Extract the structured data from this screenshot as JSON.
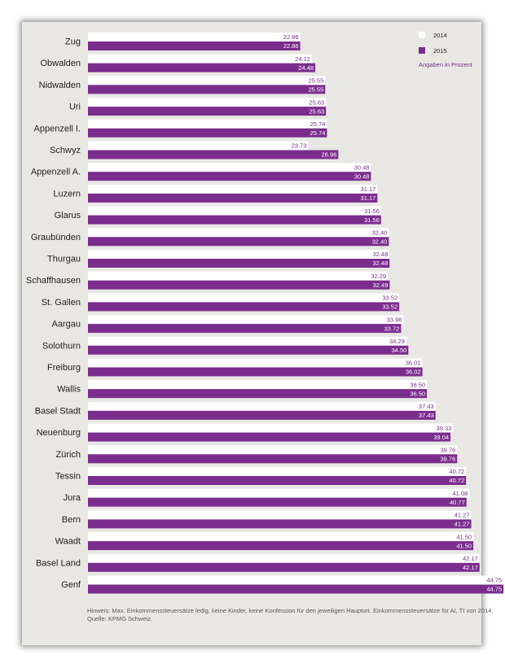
{
  "chart_data": {
    "type": "bar",
    "orientation": "horizontal",
    "categories": [
      "Zug",
      "Obwalden",
      "Nidwalden",
      "Uri",
      "Appenzell I.",
      "Schwyz",
      "Appenzell A.",
      "Luzern",
      "Glarus",
      "Graubünden",
      "Thurgau",
      "Schaffhausen",
      "St. Gallen",
      "Aargau",
      "Solothurn",
      "Freiburg",
      "Wallis",
      "Basel Stadt",
      "Neuenburg",
      "Zürich",
      "Tessin",
      "Jura",
      "Bern",
      "Waadt",
      "Basel Land",
      "Genf"
    ],
    "series": [
      {
        "name": "2014",
        "color": "#ffffff",
        "values": [
          22.86,
          24.12,
          25.55,
          25.63,
          25.74,
          23.73,
          30.48,
          31.17,
          31.56,
          32.4,
          32.48,
          32.29,
          33.52,
          33.98,
          34.29,
          36.01,
          36.5,
          37.43,
          39.33,
          39.76,
          40.72,
          41.08,
          41.27,
          41.5,
          42.17,
          44.75
        ]
      },
      {
        "name": "2015",
        "color": "#7b2d8e",
        "values": [
          22.86,
          24.48,
          25.55,
          25.63,
          25.74,
          26.96,
          30.48,
          31.17,
          31.56,
          32.4,
          32.48,
          32.49,
          33.52,
          33.72,
          34.5,
          36.02,
          36.5,
          37.43,
          39.04,
          39.76,
          40.72,
          40.77,
          41.27,
          41.5,
          42.17,
          44.75
        ]
      }
    ],
    "xlim": [
      0,
      45
    ],
    "grid": false,
    "legend_position": "top-right",
    "annotation": "Angaben in Prozent",
    "note_line1": "Hinweis: Max. Einkommenssteuersätze ledig, keine Kinder, keine Konfession für den jeweiligen Hauptort. Einkommenssteuersätze für AI, TI von 2014.",
    "note_line2": "Quelle: KPMG Schweiz.",
    "accent_color": "#7b2d8e",
    "background_color": "#e8e7e3"
  }
}
